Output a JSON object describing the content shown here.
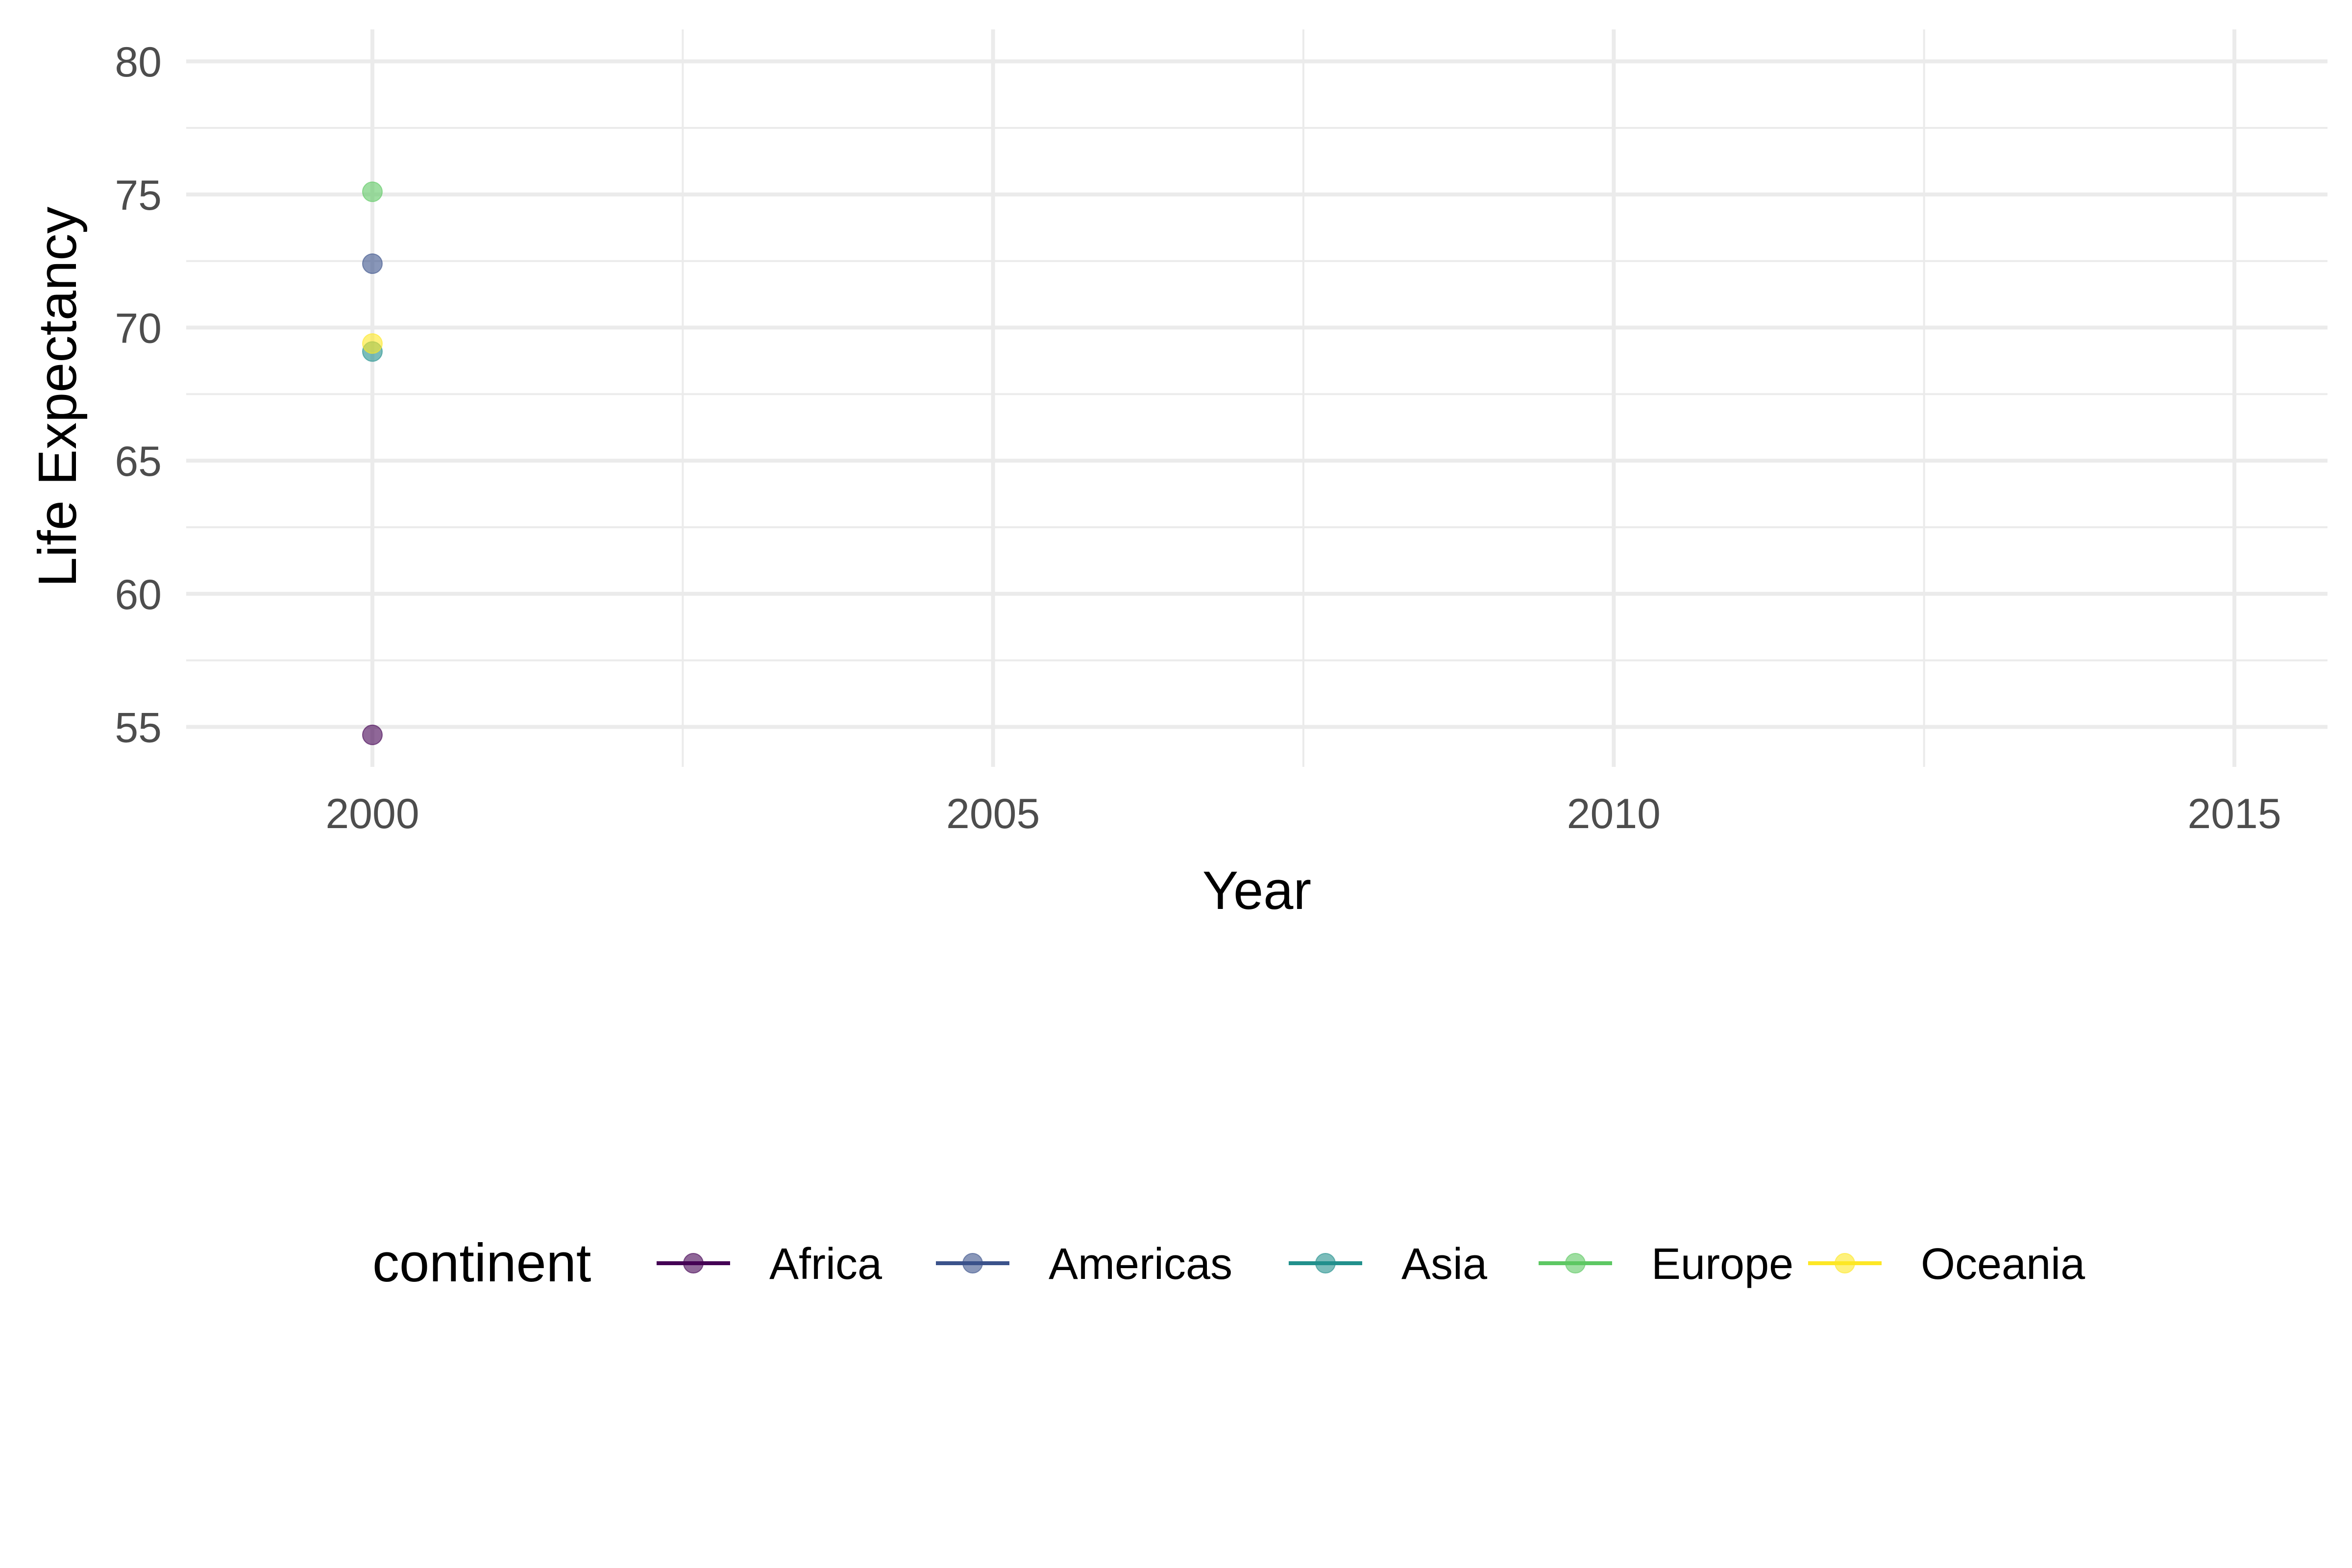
{
  "chart_data": {
    "type": "scatter",
    "xlabel": "Year",
    "ylabel": "Life Expectancy",
    "xlim": [
      1998.5,
      2015.75
    ],
    "ylim": [
      53.5,
      81.2
    ],
    "x_ticks": [
      2000,
      2005,
      2010,
      2015
    ],
    "x_tick_labels": [
      "2000",
      "2005",
      "2010",
      "2015"
    ],
    "x_minor_ticks": [
      2002.5,
      2007.5,
      2012.5
    ],
    "y_ticks": [
      55,
      60,
      65,
      70,
      75,
      80
    ],
    "y_tick_labels": [
      "55",
      "60",
      "65",
      "70",
      "75",
      "80"
    ],
    "y_minor_ticks": [
      57.5,
      62.5,
      67.5,
      72.5,
      77.5
    ],
    "grid": true,
    "legend": {
      "title": "continent",
      "position": "bottom"
    },
    "series": [
      {
        "name": "Africa",
        "color": "#440154",
        "points": [
          {
            "x": 2000,
            "y": 54.7
          }
        ]
      },
      {
        "name": "Americas",
        "color": "#3b528b",
        "points": [
          {
            "x": 2000,
            "y": 72.4
          }
        ]
      },
      {
        "name": "Asia",
        "color": "#21908c",
        "points": [
          {
            "x": 2000,
            "y": 69.1
          }
        ]
      },
      {
        "name": "Europe",
        "color": "#5dc863",
        "points": [
          {
            "x": 2000,
            "y": 75.1
          }
        ]
      },
      {
        "name": "Oceania",
        "color": "#fde725",
        "points": [
          {
            "x": 2000,
            "y": 69.4
          }
        ]
      }
    ]
  }
}
